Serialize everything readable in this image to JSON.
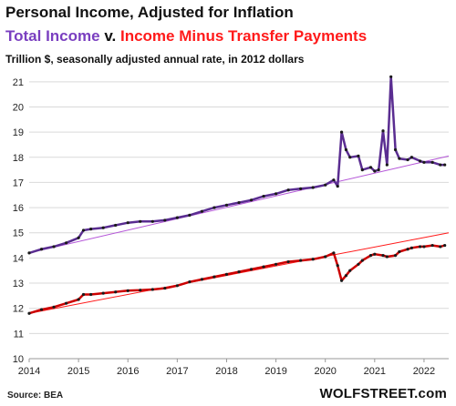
{
  "header": {
    "title": "Personal Income, Adjusted for Inflation",
    "subtitle_part1": "Total Income",
    "subtitle_part2": " v. ",
    "subtitle_part3": "Income Minus Transfer Payments",
    "units": "Trillion $, seasonally adjusted annual rate, in 2012 dollars"
  },
  "footer": {
    "source": "Source: BEA",
    "brand": "WOLFSTREET.com"
  },
  "colors": {
    "total_income": "#5a2d91",
    "total_income_trend": "#b455d8",
    "minus_transfers": "#cc0000",
    "minus_transfers_trend": "#ff1a1a",
    "markers": "#1a1a1a",
    "grid": "#d9d9d9"
  },
  "chart_data": {
    "type": "line",
    "x_unit": "year",
    "xlim": [
      2014,
      2022.5
    ],
    "ylim": [
      10,
      21.5
    ],
    "x_ticks": [
      "2014",
      "2015",
      "2016",
      "2017",
      "2018",
      "2019",
      "2020",
      "2021",
      "2022"
    ],
    "y_ticks": [
      "10",
      "11",
      "12",
      "13",
      "14",
      "15",
      "16",
      "17",
      "18",
      "19",
      "20",
      "21"
    ],
    "grid": "horizontal",
    "series": [
      {
        "name": "Total Income",
        "color_key": "total_income",
        "points": [
          [
            2014.0,
            14.2
          ],
          [
            2014.25,
            14.35
          ],
          [
            2014.5,
            14.45
          ],
          [
            2014.75,
            14.6
          ],
          [
            2015.0,
            14.8
          ],
          [
            2015.1,
            15.1
          ],
          [
            2015.25,
            15.15
          ],
          [
            2015.5,
            15.2
          ],
          [
            2015.75,
            15.3
          ],
          [
            2016.0,
            15.4
          ],
          [
            2016.25,
            15.45
          ],
          [
            2016.5,
            15.45
          ],
          [
            2016.75,
            15.5
          ],
          [
            2017.0,
            15.6
          ],
          [
            2017.25,
            15.7
          ],
          [
            2017.5,
            15.85
          ],
          [
            2017.75,
            16.0
          ],
          [
            2018.0,
            16.1
          ],
          [
            2018.25,
            16.2
          ],
          [
            2018.5,
            16.3
          ],
          [
            2018.75,
            16.45
          ],
          [
            2019.0,
            16.55
          ],
          [
            2019.25,
            16.7
          ],
          [
            2019.5,
            16.75
          ],
          [
            2019.75,
            16.8
          ],
          [
            2020.0,
            16.9
          ],
          [
            2020.17,
            17.1
          ],
          [
            2020.25,
            16.85
          ],
          [
            2020.33,
            19.0
          ],
          [
            2020.42,
            18.3
          ],
          [
            2020.5,
            18.0
          ],
          [
            2020.67,
            18.05
          ],
          [
            2020.75,
            17.5
          ],
          [
            2020.92,
            17.6
          ],
          [
            2021.0,
            17.45
          ],
          [
            2021.08,
            17.5
          ],
          [
            2021.17,
            19.05
          ],
          [
            2021.25,
            17.7
          ],
          [
            2021.33,
            21.2
          ],
          [
            2021.42,
            18.3
          ],
          [
            2021.5,
            17.95
          ],
          [
            2021.67,
            17.9
          ],
          [
            2021.75,
            18.0
          ],
          [
            2021.92,
            17.85
          ],
          [
            2022.0,
            17.8
          ],
          [
            2022.17,
            17.8
          ],
          [
            2022.33,
            17.7
          ],
          [
            2022.42,
            17.7
          ]
        ],
        "trend": [
          [
            2014.0,
            14.2
          ],
          [
            2022.5,
            18.05
          ]
        ]
      },
      {
        "name": "Income Minus Transfer Payments",
        "color_key": "minus_transfers",
        "points": [
          [
            2014.0,
            11.8
          ],
          [
            2014.25,
            11.95
          ],
          [
            2014.5,
            12.05
          ],
          [
            2014.75,
            12.2
          ],
          [
            2015.0,
            12.35
          ],
          [
            2015.1,
            12.55
          ],
          [
            2015.25,
            12.55
          ],
          [
            2015.5,
            12.6
          ],
          [
            2015.75,
            12.65
          ],
          [
            2016.0,
            12.7
          ],
          [
            2016.25,
            12.72
          ],
          [
            2016.5,
            12.75
          ],
          [
            2016.75,
            12.8
          ],
          [
            2017.0,
            12.9
          ],
          [
            2017.25,
            13.05
          ],
          [
            2017.5,
            13.15
          ],
          [
            2017.75,
            13.25
          ],
          [
            2018.0,
            13.35
          ],
          [
            2018.25,
            13.45
          ],
          [
            2018.5,
            13.55
          ],
          [
            2018.75,
            13.65
          ],
          [
            2019.0,
            13.75
          ],
          [
            2019.25,
            13.85
          ],
          [
            2019.5,
            13.9
          ],
          [
            2019.75,
            13.95
          ],
          [
            2020.0,
            14.05
          ],
          [
            2020.17,
            14.2
          ],
          [
            2020.25,
            13.7
          ],
          [
            2020.33,
            13.1
          ],
          [
            2020.42,
            13.3
          ],
          [
            2020.5,
            13.5
          ],
          [
            2020.67,
            13.75
          ],
          [
            2020.75,
            13.9
          ],
          [
            2020.92,
            14.1
          ],
          [
            2021.0,
            14.15
          ],
          [
            2021.17,
            14.1
          ],
          [
            2021.25,
            14.05
          ],
          [
            2021.42,
            14.1
          ],
          [
            2021.5,
            14.25
          ],
          [
            2021.67,
            14.35
          ],
          [
            2021.75,
            14.4
          ],
          [
            2021.92,
            14.45
          ],
          [
            2022.0,
            14.45
          ],
          [
            2022.17,
            14.5
          ],
          [
            2022.33,
            14.45
          ],
          [
            2022.42,
            14.5
          ]
        ],
        "trend": [
          [
            2014.0,
            11.8
          ],
          [
            2022.5,
            15.0
          ]
        ]
      }
    ]
  }
}
